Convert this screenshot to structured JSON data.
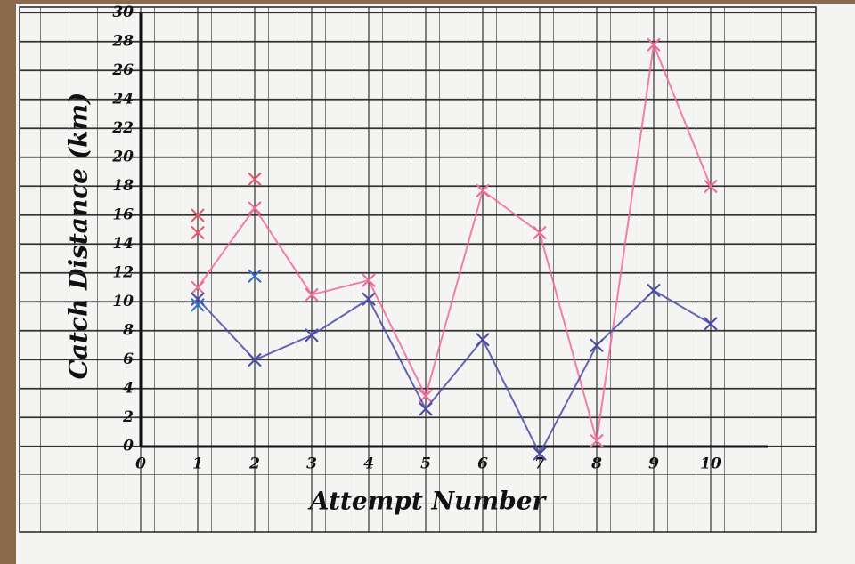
{
  "chart_data": {
    "type": "line",
    "x_label": "Attempt Number",
    "y_label": "Catch Distance (km)",
    "series": [
      {
        "color": "#f06a9a",
        "x": [
          1,
          2,
          3,
          4,
          5,
          6,
          7,
          8,
          9,
          10
        ],
        "values": [
          11,
          16.5,
          10.5,
          11.5,
          3.5,
          17.7,
          14.8,
          0.4,
          27.8,
          18
        ]
      },
      {
        "color": "#4a4aa8",
        "x": [
          1,
          2,
          3,
          4,
          5,
          6,
          7,
          8,
          9,
          10
        ],
        "values": [
          10.2,
          6,
          7.7,
          10.2,
          2.6,
          7.4,
          -0.5,
          7,
          10.8,
          8.5
        ]
      },
      {
        "color": "#e8566a",
        "x": [
          1,
          1,
          2
        ],
        "values": [
          14.8,
          16,
          18.5
        ],
        "line": false
      },
      {
        "color": "#2f6fd0",
        "x": [
          1,
          2
        ],
        "values": [
          9.8,
          11.8
        ],
        "line": false
      }
    ],
    "xlim": [
      0,
      11
    ],
    "ylim": [
      0,
      30
    ],
    "xticks": [
      0,
      1,
      2,
      3,
      4,
      5,
      6,
      7,
      8,
      9,
      10
    ],
    "yticks": [
      0,
      2,
      4,
      6,
      8,
      10,
      12,
      14,
      16,
      18,
      20,
      22,
      24,
      26,
      28,
      30
    ],
    "grid": true
  }
}
